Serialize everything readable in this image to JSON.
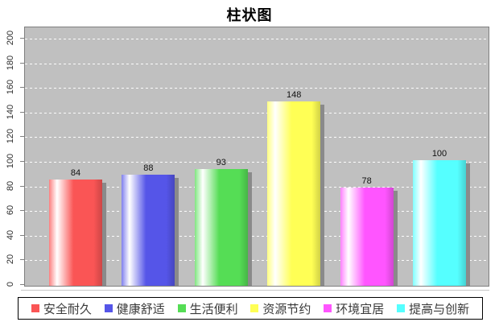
{
  "chart_data": {
    "type": "bar",
    "title": "柱状图",
    "categories": [
      "安全耐久",
      "健康舒适",
      "生活便利",
      "资源节约",
      "环境宜居",
      "提高与创新"
    ],
    "values": [
      84,
      88,
      93,
      148,
      78,
      100
    ],
    "colors": [
      "#fa5555",
      "#5555e8",
      "#55dd55",
      "#ffff55",
      "#ff55ff",
      "#55ffff"
    ],
    "value_labels": [
      "84",
      "88",
      "93",
      "148",
      "78",
      "100"
    ],
    "ytick_labels": [
      "0",
      "20",
      "40",
      "60",
      "80",
      "100",
      "120",
      "140",
      "160",
      "180",
      "200"
    ],
    "ylim": [
      0,
      200
    ],
    "ytick_step": 20,
    "grid": true,
    "gridline_color": "#ffffff",
    "plot_background": "#c0c0c0",
    "legend_position": "bottom"
  }
}
